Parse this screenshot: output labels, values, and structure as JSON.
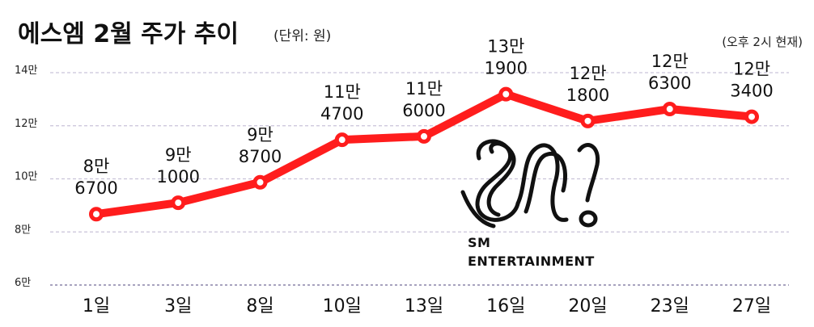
{
  "chart_data": {
    "type": "line",
    "title": "에스엠 2월 주가 추이",
    "unit_note": "(단위: 원)",
    "time_note": "(오후 2시 현재)",
    "categories": [
      "1일",
      "3일",
      "8일",
      "10일",
      "13일",
      "16일",
      "20일",
      "23일",
      "27일"
    ],
    "values": [
      86700,
      91000,
      98700,
      114700,
      116000,
      131900,
      121800,
      126300,
      123400
    ],
    "data_labels": [
      [
        "8만",
        "6700"
      ],
      [
        "9만",
        "1000"
      ],
      [
        "9만",
        "8700"
      ],
      [
        "11만",
        "4700"
      ],
      [
        "11만",
        "6000"
      ],
      [
        "13만",
        "1900"
      ],
      [
        "12만",
        "1800"
      ],
      [
        "12만",
        "6300"
      ],
      [
        "12만",
        "3400"
      ]
    ],
    "y_ticks": [
      {
        "value": 60000,
        "label": "6만"
      },
      {
        "value": 80000,
        "label": "8만"
      },
      {
        "value": 100000,
        "label": "10만"
      },
      {
        "value": 120000,
        "label": "12만"
      },
      {
        "value": 140000,
        "label": "14만"
      }
    ],
    "ylim": [
      60000,
      140000
    ],
    "grid": true,
    "series_color": "#ff1d1d",
    "logo_text": [
      "SM",
      "ENTERTAINMENT"
    ]
  }
}
